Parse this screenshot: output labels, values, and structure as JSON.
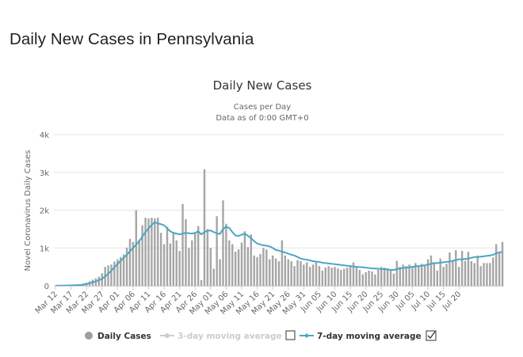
{
  "page": {
    "title": "Daily New Cases in Pennsylvania"
  },
  "colors": {
    "bar": "#a6a6a6",
    "line7": "#4aa6c4",
    "line3": "#c8c8c8",
    "grid": "#e6e6e6"
  },
  "chart_data": {
    "type": "bar",
    "title": "Daily New Cases",
    "subtitle1": "Cases per Day",
    "subtitle2": "Data as of 0:00 GMT+0",
    "ylabel": "Novel Coronavirus Daily Cases",
    "ylim": [
      0,
      4000
    ],
    "y_ticks": [
      0,
      1000,
      2000,
      3000,
      4000
    ],
    "y_tick_labels": [
      "0",
      "1k",
      "2k",
      "3k",
      "4k"
    ],
    "x_tick_labels": [
      "Mar 12",
      "Mar 17",
      "Mar 22",
      "Mar 27",
      "Apr 01",
      "Apr 06",
      "Apr 11",
      "Apr 16",
      "Apr 21",
      "Apr 26",
      "May 01",
      "May 06",
      "May 11",
      "May 16",
      "May 21",
      "May 26",
      "May 31",
      "Jun 05",
      "Jun 10",
      "Jun 15",
      "Jun 20",
      "Jun 25",
      "Jun 30",
      "Jul 05",
      "Jul 10",
      "Jul 15",
      "Jul 20"
    ],
    "series": [
      {
        "name": "Daily Cases",
        "kind": "bar",
        "values": [
          2,
          3,
          5,
          8,
          10,
          15,
          22,
          30,
          40,
          60,
          80,
          120,
          160,
          200,
          240,
          330,
          500,
          540,
          560,
          640,
          700,
          760,
          830,
          1010,
          1240,
          1160,
          2000,
          1220,
          1600,
          1800,
          1780,
          1800,
          1780,
          1800,
          1400,
          1100,
          1560,
          1120,
          1400,
          1200,
          920,
          2160,
          1760,
          1000,
          1200,
          1400,
          1580,
          150,
          3080,
          1500,
          1000,
          450,
          1840,
          700,
          2260,
          1640,
          1200,
          1100,
          900,
          960,
          1140,
          1440,
          1020,
          1360,
          800,
          760,
          840,
          1000,
          960,
          700,
          800,
          720,
          650,
          1200,
          800,
          700,
          650,
          520,
          680,
          650,
          560,
          620,
          500,
          560,
          650,
          520,
          400,
          480,
          520,
          480,
          500,
          460,
          420,
          450,
          480,
          500,
          620,
          520,
          420,
          300,
          360,
          400,
          380,
          300,
          420,
          500,
          480,
          460,
          400,
          320,
          660,
          500,
          560,
          520,
          560,
          480,
          600,
          520,
          580,
          560,
          700,
          800,
          620,
          400,
          720,
          500,
          580,
          880,
          640,
          940,
          500,
          920,
          660,
          900,
          650,
          600,
          800,
          520,
          600,
          600,
          600,
          750,
          1100,
          900,
          1160
        ]
      },
      {
        "name": "3-day moving average",
        "kind": "line",
        "visible": false
      },
      {
        "name": "7-day moving average",
        "kind": "line",
        "visible": true,
        "values": [
          2,
          3,
          4,
          5,
          7,
          10,
          13,
          17,
          22,
          32,
          48,
          69,
          91,
          117,
          145,
          186,
          245,
          320,
          395,
          485,
          575,
          660,
          740,
          820,
          910,
          1000,
          1090,
          1180,
          1300,
          1420,
          1520,
          1610,
          1680,
          1650,
          1630,
          1600,
          1520,
          1440,
          1400,
          1380,
          1360,
          1380,
          1400,
          1390,
          1380,
          1400,
          1440,
          1360,
          1420,
          1460,
          1460,
          1420,
          1390,
          1370,
          1500,
          1560,
          1530,
          1420,
          1330,
          1320,
          1350,
          1380,
          1320,
          1260,
          1180,
          1120,
          1090,
          1070,
          1060,
          1040,
          1000,
          950,
          930,
          900,
          880,
          850,
          820,
          800,
          760,
          720,
          700,
          690,
          670,
          650,
          640,
          630,
          610,
          600,
          590,
          580,
          570,
          560,
          550,
          540,
          530,
          520,
          510,
          500,
          495,
          490,
          480,
          470,
          460,
          455,
          450,
          440,
          440,
          430,
          420,
          420,
          440,
          460,
          470,
          480,
          490,
          500,
          510,
          520,
          530,
          540,
          560,
          580,
          600,
          600,
          610,
          620,
          630,
          640,
          660,
          680,
          700,
          700,
          710,
          720,
          740,
          760,
          760,
          770,
          780,
          790,
          800,
          820,
          860,
          880,
          900
        ]
      }
    ],
    "legend": [
      {
        "label": "Daily Cases",
        "active": true
      },
      {
        "label": "3-day moving average",
        "active": false,
        "checkbox_checked": false
      },
      {
        "label": "7-day moving average",
        "active": true,
        "checkbox_checked": true
      }
    ]
  }
}
